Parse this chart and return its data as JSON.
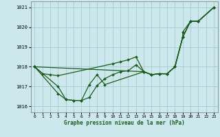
{
  "title": "Graphe pression niveau de la mer (hPa)",
  "background_color": "#cce8ec",
  "grid_color": "#aacdd4",
  "line_color": "#1a5c1a",
  "xlim": [
    -0.5,
    23.5
  ],
  "ylim": [
    1015.7,
    1021.3
  ],
  "yticks": [
    1016,
    1017,
    1018,
    1019,
    1020,
    1021
  ],
  "xticks": [
    0,
    1,
    2,
    3,
    4,
    5,
    6,
    7,
    8,
    9,
    10,
    11,
    12,
    13,
    14,
    15,
    16,
    17,
    18,
    19,
    20,
    21,
    22,
    23
  ],
  "series": [
    [
      [
        0,
        1018.0
      ],
      [
        1,
        1017.65
      ],
      [
        2,
        1017.6
      ],
      [
        3,
        1017.55
      ],
      [
        10,
        1018.15
      ],
      [
        11,
        1018.25
      ],
      [
        12,
        1018.35
      ],
      [
        13,
        1018.5
      ],
      [
        14,
        1017.75
      ],
      [
        15,
        1017.6
      ],
      [
        16,
        1017.65
      ],
      [
        17,
        1017.65
      ],
      [
        18,
        1018.0
      ],
      [
        19,
        1019.5
      ],
      [
        20,
        1020.3
      ],
      [
        21,
        1020.3
      ],
      [
        23,
        1021.0
      ]
    ],
    [
      [
        0,
        1018.0
      ],
      [
        3,
        1017.0
      ],
      [
        4,
        1016.35
      ],
      [
        5,
        1016.3
      ],
      [
        6,
        1016.3
      ],
      [
        7,
        1017.1
      ],
      [
        8,
        1017.6
      ],
      [
        9,
        1017.1
      ],
      [
        14,
        1017.75
      ],
      [
        15,
        1017.6
      ],
      [
        16,
        1017.65
      ],
      [
        17,
        1017.65
      ],
      [
        18,
        1018.0
      ],
      [
        19,
        1019.5
      ],
      [
        20,
        1020.3
      ],
      [
        21,
        1020.3
      ],
      [
        23,
        1021.0
      ]
    ],
    [
      [
        0,
        1018.0
      ],
      [
        3,
        1016.65
      ],
      [
        4,
        1016.35
      ],
      [
        5,
        1016.3
      ],
      [
        6,
        1016.3
      ],
      [
        7,
        1016.45
      ],
      [
        8,
        1017.05
      ],
      [
        9,
        1017.4
      ],
      [
        10,
        1017.6
      ],
      [
        11,
        1017.75
      ],
      [
        12,
        1017.8
      ],
      [
        13,
        1018.1
      ],
      [
        14,
        1017.75
      ],
      [
        15,
        1017.6
      ],
      [
        16,
        1017.65
      ],
      [
        17,
        1017.65
      ],
      [
        18,
        1018.0
      ],
      [
        19,
        1019.5
      ],
      [
        20,
        1020.3
      ],
      [
        21,
        1020.3
      ],
      [
        23,
        1021.0
      ]
    ],
    [
      [
        0,
        1018.0
      ],
      [
        14,
        1017.75
      ],
      [
        15,
        1017.6
      ],
      [
        16,
        1017.65
      ],
      [
        17,
        1017.65
      ],
      [
        18,
        1018.0
      ],
      [
        19,
        1019.5
      ],
      [
        19,
        1019.75
      ],
      [
        20,
        1020.3
      ],
      [
        21,
        1020.3
      ],
      [
        23,
        1021.0
      ]
    ]
  ]
}
